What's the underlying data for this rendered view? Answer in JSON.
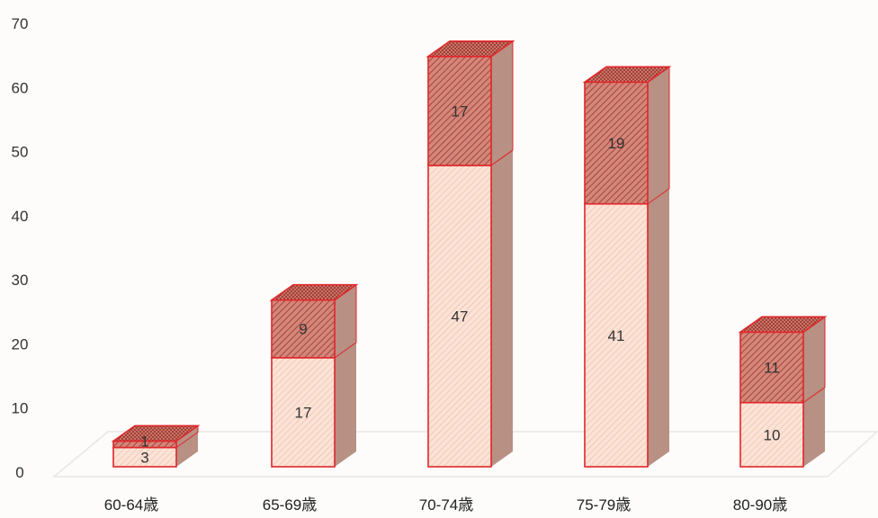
{
  "chart_data": {
    "type": "bar",
    "stacked": true,
    "three_d": true,
    "categories": [
      "60-64歳",
      "65-69歳",
      "70-74歳",
      "75-79歳",
      "80-90歳"
    ],
    "series": [
      {
        "values": [
          3,
          17,
          47,
          41,
          10
        ],
        "color": "#fbe3d6",
        "pattern": "light-diagonal-hatch"
      },
      {
        "values": [
          1,
          9,
          17,
          19,
          11
        ],
        "color": "#c45a4a",
        "pattern": "dark-diagonal-hatch"
      }
    ],
    "data_labels": [
      [
        "3",
        "17",
        "47",
        "41",
        "10"
      ],
      [
        "1",
        "9",
        "17",
        "19",
        "11"
      ]
    ],
    "y_ticks": [
      "0",
      "10",
      "20",
      "30",
      "40",
      "50",
      "60",
      "70"
    ],
    "ylim": [
      0,
      70
    ],
    "grid": false,
    "legend": "none",
    "title": "",
    "xlabel": "",
    "ylabel": "",
    "colors": {
      "edge": "#e0262a",
      "side_shade": "#b89084",
      "floor": "#e6e6e6"
    }
  }
}
